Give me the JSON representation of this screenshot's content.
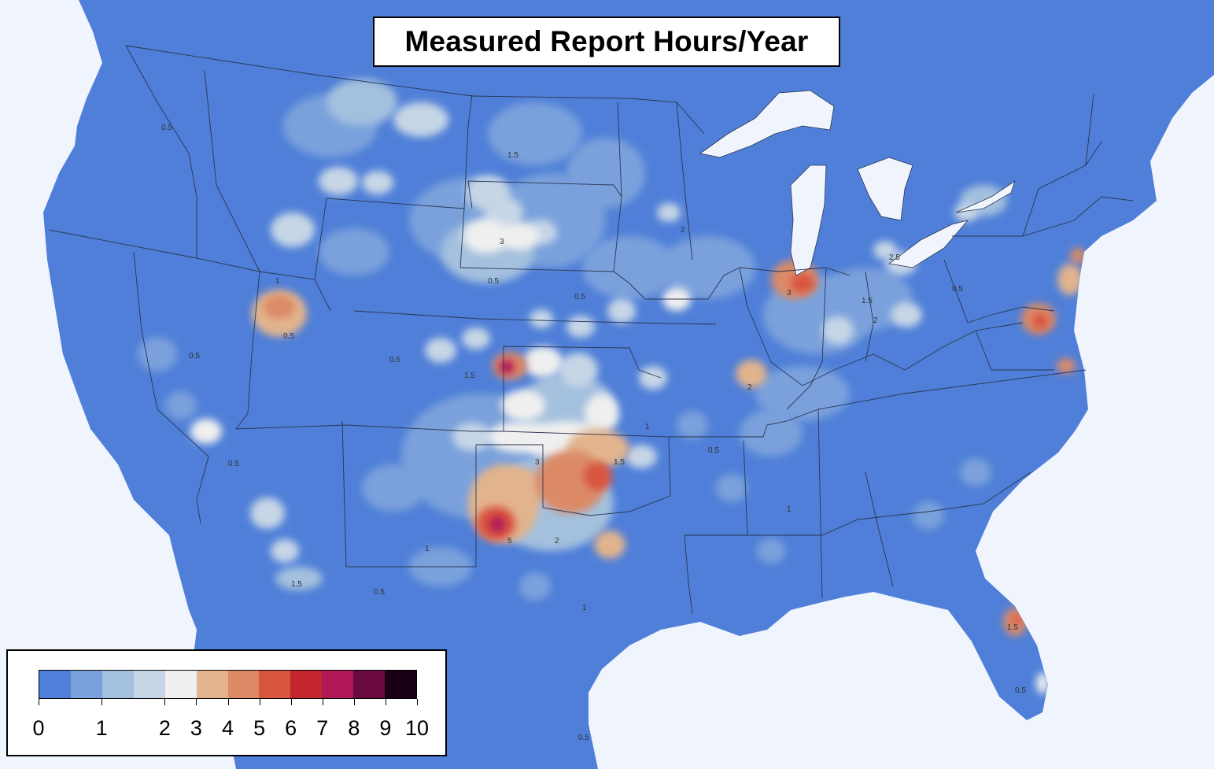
{
  "title": "Measured Report Hours/Year",
  "legend": {
    "colors": [
      "#4f7fd8",
      "#7aa1dc",
      "#a3c0de",
      "#c6d6e6",
      "#efefef",
      "#e2b48d",
      "#dc8a66",
      "#d8553f",
      "#c4262e",
      "#b01858",
      "#6a0a40",
      "#1a0014"
    ],
    "tick_labels": [
      "0",
      "1",
      "2",
      "3",
      "4",
      "5",
      "6",
      "7",
      "8",
      "9",
      "10"
    ]
  },
  "palette": {
    "ocean": "#f0f4fc",
    "land": "#4f7fd8",
    "boundary": "#2a3550"
  },
  "contour_labels": [
    "0.5",
    "1",
    "1.5",
    "2",
    "3",
    "5",
    "2.5"
  ]
}
